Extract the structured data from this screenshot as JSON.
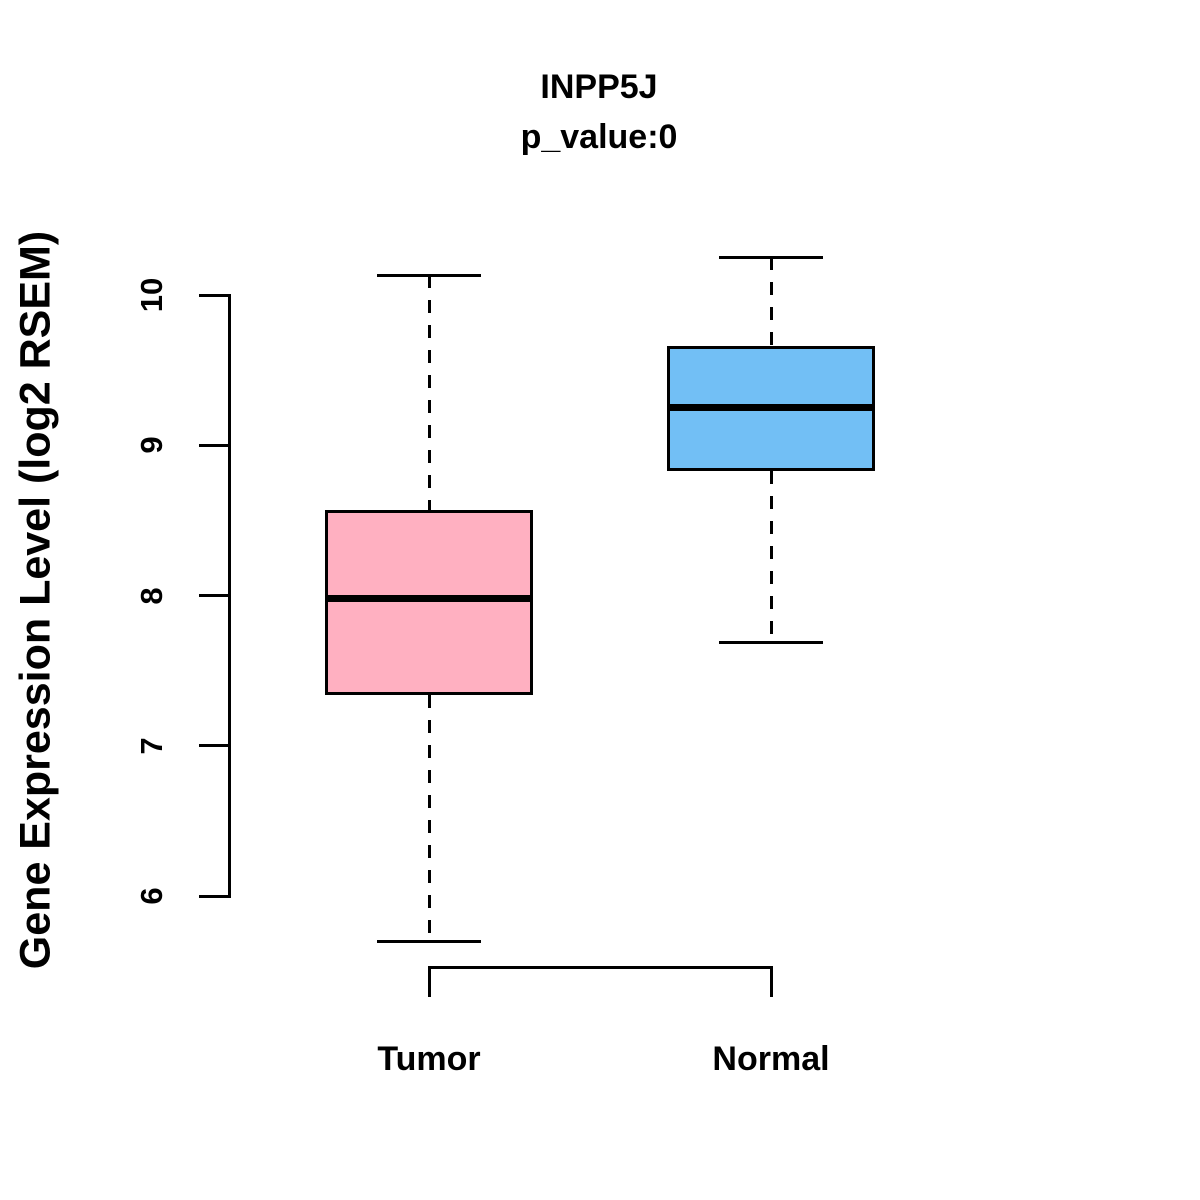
{
  "title": "INPP5J",
  "subtitle": "p_value:0",
  "chart_data": {
    "type": "boxplot",
    "title": "INPP5J",
    "subtitle": "p_value:0",
    "xlabel": "",
    "ylabel": "Gene Expression Level (log2 RSEM)",
    "y_ticks": [
      6,
      7,
      8,
      9,
      10
    ],
    "y_axis_range": [
      6,
      10
    ],
    "grid": false,
    "legend": false,
    "groups": [
      {
        "label": "Tumor",
        "fill_color": "#FFB0C1",
        "lower_whisker": 5.7,
        "q1": 7.34,
        "median": 7.98,
        "q3": 8.57,
        "upper_whisker": 10.13
      },
      {
        "label": "Normal",
        "fill_color": "#72BFF5",
        "lower_whisker": 7.69,
        "q1": 8.83,
        "median": 9.25,
        "q3": 9.66,
        "upper_whisker": 10.25
      }
    ],
    "colors": {
      "box_border": "#000000",
      "median_line": "#000000",
      "axis": "#000000",
      "background": "#ffffff"
    }
  }
}
